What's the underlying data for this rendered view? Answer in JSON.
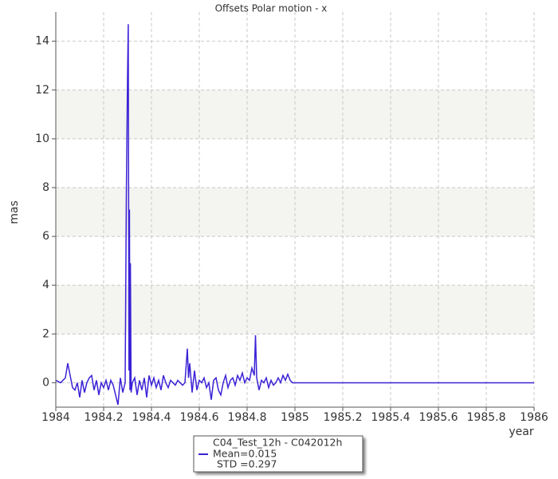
{
  "chart_data": {
    "type": "line",
    "title": "Offsets Polar motion - x",
    "x_label": "year",
    "y_label": "mas",
    "xlim": [
      1984,
      1986
    ],
    "xticks": [
      1984,
      1984.2,
      1984.4,
      1984.6,
      1984.8,
      1985,
      1985.2,
      1985.4,
      1985.6,
      1985.8,
      1986
    ],
    "ylim": [
      -1,
      15.2
    ],
    "yticks": [
      0,
      2,
      4,
      6,
      8,
      10,
      12,
      14
    ],
    "grid": true,
    "legend_stats": [
      "Mean=0.015",
      "STD =0.297"
    ],
    "x": [
      1984.0,
      1984.01,
      1984.02,
      1984.03,
      1984.04,
      1984.05,
      1984.06,
      1984.07,
      1984.08,
      1984.09,
      1984.1,
      1984.11,
      1984.12,
      1984.13,
      1984.14,
      1984.15,
      1984.16,
      1984.17,
      1984.18,
      1984.19,
      1984.2,
      1984.21,
      1984.22,
      1984.23,
      1984.24,
      1984.25,
      1984.26,
      1984.27,
      1984.28,
      1984.29,
      1984.295,
      1984.3,
      1984.303,
      1984.306,
      1984.308,
      1984.31,
      1984.312,
      1984.315,
      1984.32,
      1984.33,
      1984.34,
      1984.35,
      1984.36,
      1984.37,
      1984.38,
      1984.39,
      1984.4,
      1984.41,
      1984.42,
      1984.43,
      1984.44,
      1984.45,
      1984.46,
      1984.47,
      1984.48,
      1984.49,
      1984.5,
      1984.51,
      1984.52,
      1984.53,
      1984.54,
      1984.55,
      1984.555,
      1984.56,
      1984.57,
      1984.58,
      1984.59,
      1984.6,
      1984.61,
      1984.62,
      1984.63,
      1984.64,
      1984.65,
      1984.66,
      1984.67,
      1984.68,
      1984.69,
      1984.7,
      1984.71,
      1984.72,
      1984.73,
      1984.74,
      1984.75,
      1984.76,
      1984.77,
      1984.78,
      1984.79,
      1984.8,
      1984.81,
      1984.82,
      1984.83,
      1984.835,
      1984.84,
      1984.85,
      1984.86,
      1984.87,
      1984.88,
      1984.89,
      1984.9,
      1984.91,
      1984.92,
      1984.93,
      1984.94,
      1984.95,
      1984.96,
      1984.97,
      1984.98,
      1984.99,
      1985.0,
      1985.5,
      1986
    ],
    "series": [
      {
        "name": "C04_Test_12h - C042012h",
        "color": "#3a22d6",
        "values": [
          0.1,
          0.05,
          0.0,
          0.1,
          0.2,
          0.8,
          0.3,
          -0.2,
          -0.3,
          0.0,
          -0.6,
          0.1,
          -0.4,
          0.0,
          0.2,
          0.3,
          -0.3,
          0.1,
          -0.5,
          0.0,
          -0.2,
          0.1,
          -0.3,
          0.1,
          -0.1,
          -0.5,
          -0.9,
          0.2,
          -0.4,
          0.0,
          7.7,
          12.6,
          14.7,
          0.5,
          7.1,
          -0.3,
          4.9,
          -0.4,
          0.0,
          0.2,
          -0.5,
          0.1,
          -0.3,
          0.2,
          -0.6,
          0.3,
          -0.1,
          0.2,
          -0.2,
          0.1,
          -0.3,
          0.3,
          0.0,
          -0.2,
          0.1,
          0.0,
          -0.1,
          0.1,
          0.0,
          -0.1,
          0.0,
          1.4,
          0.2,
          0.8,
          -0.4,
          0.5,
          -0.3,
          0.1,
          0.0,
          0.2,
          -0.2,
          0.0,
          -0.7,
          0.1,
          0.2,
          -0.3,
          -0.5,
          0.0,
          0.3,
          -0.2,
          0.1,
          0.2,
          -0.1,
          0.3,
          0.1,
          0.4,
          0.0,
          0.2,
          0.1,
          0.6,
          0.3,
          1.95,
          0.2,
          -0.3,
          0.1,
          0.0,
          0.2,
          -0.2,
          0.1,
          -0.1,
          0.0,
          0.2,
          0.0,
          0.3,
          0.1,
          0.35,
          0.1,
          0.0,
          0.0,
          0,
          0
        ]
      }
    ]
  }
}
